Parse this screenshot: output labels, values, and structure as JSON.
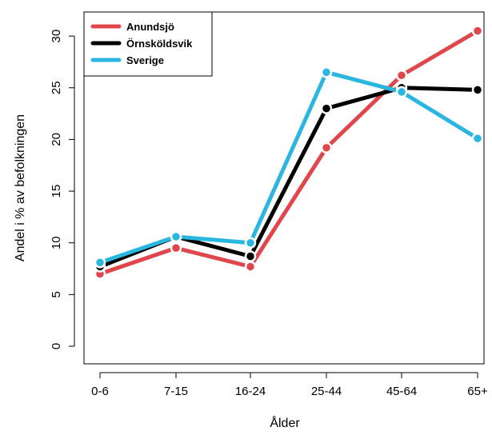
{
  "chart_data": {
    "type": "line",
    "title": "",
    "xlabel": "Ålder",
    "ylabel": "Andel i % av befolkningen",
    "categories": [
      "0-6",
      "7-15",
      "16-24",
      "25-44",
      "45-64",
      "65+"
    ],
    "yticks": [
      "0",
      "5",
      "10",
      "15",
      "20",
      "25",
      "30"
    ],
    "ylim": [
      0,
      30
    ],
    "grid": false,
    "legend_position": "top-left",
    "series": [
      {
        "name": "Anundsjö",
        "color": "#e0474c",
        "values": [
          7.0,
          9.5,
          7.7,
          19.2,
          26.2,
          30.5
        ]
      },
      {
        "name": "Örnsköldsvik",
        "color": "#000000",
        "values": [
          7.7,
          10.6,
          8.7,
          23.0,
          25.0,
          24.8
        ]
      },
      {
        "name": "Sverige",
        "color": "#29b6e0",
        "values": [
          8.1,
          10.6,
          10.0,
          26.5,
          24.6,
          20.1
        ]
      }
    ]
  }
}
